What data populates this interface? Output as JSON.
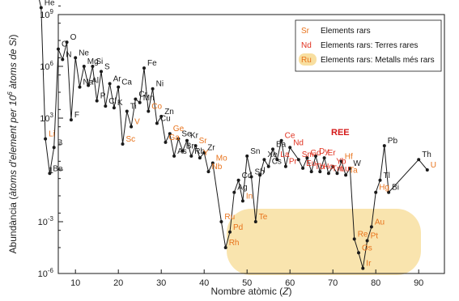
{
  "chart_data": {
    "type": "line",
    "xlabel_prefix": "Nombre atòmic (",
    "xlabel_var": "Z",
    "xlabel_suffix": ")",
    "ylabel_prefix": "Abundància (",
    "ylabel_italic_a": "àtoms d'element per 10",
    "ylabel_sup": "6",
    "ylabel_italic_b": " àtoms de Si",
    "ylabel_suffix": ")",
    "xlim": [
      6,
      96
    ],
    "ylim_log10": [
      -6,
      9
    ],
    "x_ticks": [
      10,
      20,
      30,
      40,
      50,
      60,
      70,
      80,
      90
    ],
    "y_ticks": [
      {
        "exp": 9,
        "base": "10",
        "sup": "9"
      },
      {
        "exp": 6,
        "base": "10",
        "sup": "6"
      },
      {
        "exp": 3,
        "base": "10",
        "sup": "3"
      },
      {
        "exp": 0,
        "base": "1",
        "sup": ""
      },
      {
        "exp": -3,
        "base": "10",
        "sup": "-3"
      },
      {
        "exp": -6,
        "base": "10",
        "sup": "-6"
      }
    ],
    "colors": {
      "rare": "#e8731c",
      "terres": "#e0311f",
      "highlight": "#f8dfa0",
      "line": "#1a1a1a",
      "ree": "#d41818"
    },
    "annotation": "REE",
    "legend": [
      {
        "symbol": "Sr",
        "kind": "rare",
        "text": "Elements rars"
      },
      {
        "symbol": "Nd",
        "kind": "terres",
        "text": "Elements rars: Terres rares"
      },
      {
        "symbol": "Ru",
        "kind": "highlight",
        "text": "Elements rars: Metalls més rars"
      }
    ],
    "points": [
      {
        "sym": "H",
        "z": 1,
        "log": 10.45,
        "c": "k"
      },
      {
        "sym": "He",
        "z": 2,
        "log": 9.4,
        "c": "k"
      },
      {
        "sym": "Li",
        "z": 3,
        "log": 1.8,
        "c": "o"
      },
      {
        "sym": "Be",
        "z": 4,
        "log": -0.2,
        "c": "k"
      },
      {
        "sym": "B",
        "z": 5,
        "log": 1.3,
        "c": "k"
      },
      {
        "sym": "C",
        "z": 6,
        "log": 7.0,
        "c": "k"
      },
      {
        "sym": "N",
        "z": 7,
        "log": 6.4,
        "c": "k"
      },
      {
        "sym": "O",
        "z": 8,
        "log": 7.4,
        "c": "k"
      },
      {
        "sym": "F",
        "z": 9,
        "log": 2.9,
        "c": "k"
      },
      {
        "sym": "Ne",
        "z": 10,
        "log": 6.5,
        "c": "k"
      },
      {
        "sym": "Na",
        "z": 11,
        "log": 4.8,
        "c": "k"
      },
      {
        "sym": "Mg",
        "z": 12,
        "log": 6.0,
        "c": "k"
      },
      {
        "sym": "Al",
        "z": 13,
        "log": 4.9,
        "c": "k"
      },
      {
        "sym": "Si",
        "z": 14,
        "log": 6.0,
        "c": "k"
      },
      {
        "sym": "P",
        "z": 15,
        "log": 4.0,
        "c": "k"
      },
      {
        "sym": "S",
        "z": 16,
        "log": 5.7,
        "c": "k"
      },
      {
        "sym": "Cl",
        "z": 17,
        "log": 3.7,
        "c": "k"
      },
      {
        "sym": "Ar",
        "z": 18,
        "log": 5.0,
        "c": "k"
      },
      {
        "sym": "K",
        "z": 19,
        "log": 3.6,
        "c": "k"
      },
      {
        "sym": "Ca",
        "z": 20,
        "log": 4.8,
        "c": "k"
      },
      {
        "sym": "Sc",
        "z": 21,
        "log": 1.5,
        "c": "o"
      },
      {
        "sym": "Ti",
        "z": 22,
        "log": 3.4,
        "c": "k"
      },
      {
        "sym": "V",
        "z": 23,
        "log": 2.5,
        "c": "o"
      },
      {
        "sym": "Cr",
        "z": 24,
        "log": 4.1,
        "c": "k"
      },
      {
        "sym": "Mn",
        "z": 25,
        "log": 3.9,
        "c": "k"
      },
      {
        "sym": "Fe",
        "z": 26,
        "log": 5.9,
        "c": "k"
      },
      {
        "sym": "Co",
        "z": 27,
        "log": 3.4,
        "c": "o"
      },
      {
        "sym": "Ni",
        "z": 28,
        "log": 4.7,
        "c": "k"
      },
      {
        "sym": "Cu",
        "z": 29,
        "log": 2.7,
        "c": "k"
      },
      {
        "sym": "Zn",
        "z": 30,
        "log": 3.1,
        "c": "k"
      },
      {
        "sym": "Ga",
        "z": 31,
        "log": 1.6,
        "c": "o"
      },
      {
        "sym": "Ge",
        "z": 32,
        "log": 2.1,
        "c": "o"
      },
      {
        "sym": "As",
        "z": 33,
        "log": 0.8,
        "c": "k"
      },
      {
        "sym": "Se",
        "z": 34,
        "log": 1.8,
        "c": "k"
      },
      {
        "sym": "Br",
        "z": 35,
        "log": 1.1,
        "c": "k"
      },
      {
        "sym": "Kr",
        "z": 36,
        "log": 1.7,
        "c": "k"
      },
      {
        "sym": "Rb",
        "z": 37,
        "log": 0.8,
        "c": "k"
      },
      {
        "sym": "Sr",
        "z": 38,
        "log": 1.4,
        "c": "o"
      },
      {
        "sym": "Y",
        "z": 39,
        "log": 0.7,
        "c": "o"
      },
      {
        "sym": "Zr",
        "z": 40,
        "log": 1.0,
        "c": "k"
      },
      {
        "sym": "Nb",
        "z": 41,
        "log": -0.1,
        "c": "o"
      },
      {
        "sym": "Mo",
        "z": 42,
        "log": 0.4,
        "c": "o"
      },
      {
        "sym": "Ru",
        "z": 44,
        "log": -3.0,
        "c": "o"
      },
      {
        "sym": "Rh",
        "z": 45,
        "log": -4.5,
        "c": "o"
      },
      {
        "sym": "Pd",
        "z": 46,
        "log": -3.6,
        "c": "o"
      },
      {
        "sym": "Ag",
        "z": 47,
        "log": -1.3,
        "c": "k"
      },
      {
        "sym": "Cd",
        "z": 48,
        "log": -0.6,
        "c": "k"
      },
      {
        "sym": "In",
        "z": 49,
        "log": -1.8,
        "c": "o"
      },
      {
        "sym": "Sn",
        "z": 50,
        "log": 0.8,
        "c": "k"
      },
      {
        "sym": "Sb",
        "z": 51,
        "log": -0.4,
        "c": "k"
      },
      {
        "sym": "Te",
        "z": 52,
        "log": -3.0,
        "c": "o"
      },
      {
        "sym": "I",
        "z": 53,
        "log": -0.3,
        "c": "k"
      },
      {
        "sym": "Xe",
        "z": 54,
        "log": 0.6,
        "c": "k"
      },
      {
        "sym": "Cs",
        "z": 55,
        "log": 0.2,
        "c": "k"
      },
      {
        "sym": "Ba",
        "z": 56,
        "log": 1.2,
        "c": "k"
      },
      {
        "sym": "La",
        "z": 57,
        "log": 0.6,
        "c": "r"
      },
      {
        "sym": "Ce",
        "z": 58,
        "log": 1.7,
        "c": "r"
      },
      {
        "sym": "Pr",
        "z": 59,
        "log": 0.2,
        "c": "r"
      },
      {
        "sym": "Nd",
        "z": 60,
        "log": 1.3,
        "c": "r"
      },
      {
        "sym": "Sm",
        "z": 62,
        "log": 0.6,
        "c": "r"
      },
      {
        "sym": "Eu",
        "z": 63,
        "log": 0.1,
        "c": "r"
      },
      {
        "sym": "Gd",
        "z": 64,
        "log": 0.7,
        "c": "r"
      },
      {
        "sym": "Tb",
        "z": 65,
        "log": -0.1,
        "c": "r"
      },
      {
        "sym": "Dy",
        "z": 66,
        "log": 0.8,
        "c": "r"
      },
      {
        "sym": "Ho",
        "z": 67,
        "log": -0.1,
        "c": "r"
      },
      {
        "sym": "Er",
        "z": 68,
        "log": 0.7,
        "c": "r"
      },
      {
        "sym": "Tm",
        "z": 69,
        "log": -0.2,
        "c": "r"
      },
      {
        "sym": "Yb",
        "z": 70,
        "log": 0.2,
        "c": "r"
      },
      {
        "sym": "Lu",
        "z": 71,
        "log": -0.2,
        "c": "r"
      },
      {
        "sym": "Hf",
        "z": 72,
        "log": 0.5,
        "c": "o"
      },
      {
        "sym": "Ta",
        "z": 73,
        "log": -0.3,
        "c": "o"
      },
      {
        "sym": "W",
        "z": 74,
        "log": 0.1,
        "c": "k"
      },
      {
        "sym": "Re",
        "z": 75,
        "log": -4.0,
        "c": "o"
      },
      {
        "sym": "Os",
        "z": 76,
        "log": -4.8,
        "c": "o"
      },
      {
        "sym": "Ir",
        "z": 77,
        "log": -5.7,
        "c": "o"
      },
      {
        "sym": "Pt",
        "z": 78,
        "log": -4.1,
        "c": "o"
      },
      {
        "sym": "Au",
        "z": 79,
        "log": -3.3,
        "c": "o"
      },
      {
        "sym": "Hg",
        "z": 80,
        "log": -1.3,
        "c": "o"
      },
      {
        "sym": "Tl",
        "z": 81,
        "log": -0.6,
        "c": "k"
      },
      {
        "sym": "Pb",
        "z": 82,
        "log": 1.4,
        "c": "k"
      },
      {
        "sym": "Bi",
        "z": 83,
        "log": -1.3,
        "c": "k"
      },
      {
        "sym": "Th",
        "z": 90,
        "log": 0.6,
        "c": "k"
      },
      {
        "sym": "U",
        "z": 92,
        "log": 0.0,
        "c": "o"
      }
    ]
  }
}
